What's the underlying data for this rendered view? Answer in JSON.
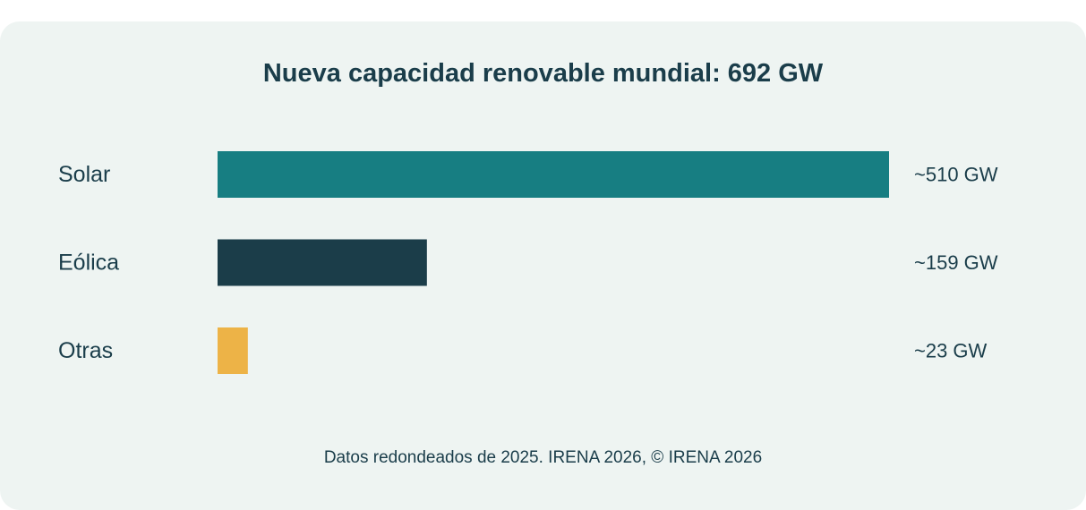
{
  "chart_data": {
    "type": "bar",
    "orientation": "horizontal",
    "title": "Nueva capacidad renovable mundial: 692 GW",
    "categories": [
      "Solar",
      "Eólica",
      "Otras"
    ],
    "values": [
      510,
      159,
      23
    ],
    "value_labels": [
      "~510 GW",
      "~159 GW",
      "~23 GW"
    ],
    "unit": "GW",
    "colors": [
      "#177e82",
      "#1b3d49",
      "#edb347"
    ],
    "xlim": [
      0,
      510
    ],
    "grid": false,
    "legend": "none",
    "source": "Datos redondeados de 2025. IRENA 2026, © IRENA 2026"
  }
}
